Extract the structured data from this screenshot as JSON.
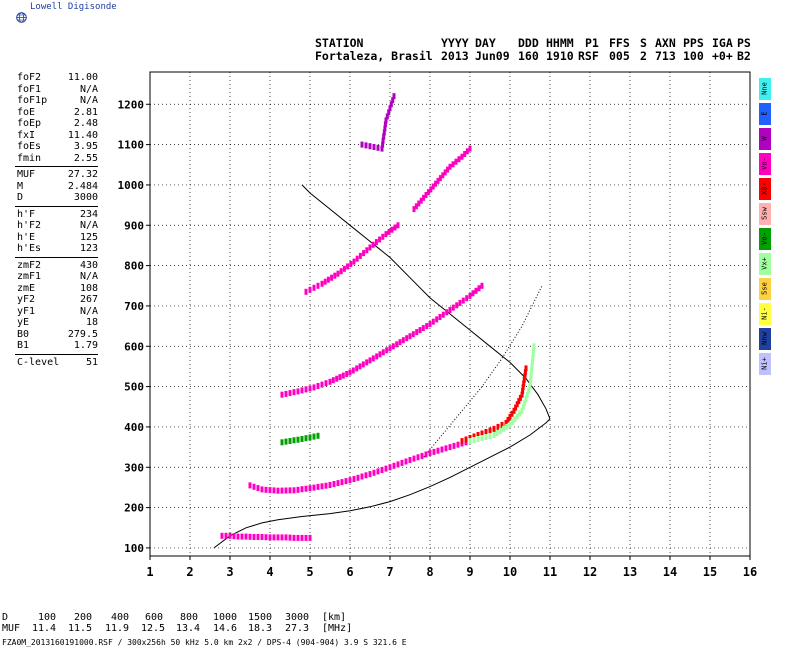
{
  "brand": {
    "name": "Lowell Digisonde"
  },
  "header": {
    "line1": [
      "STATION",
      "YYYY",
      "DAY",
      "DDD",
      "HHMM",
      "P1",
      "FFS",
      "S",
      "AXN",
      "PPS",
      "IGA",
      "PS"
    ],
    "line2": [
      "Fortaleza, Brasil",
      "2013",
      "Jun09",
      "160",
      "1910",
      "RSF",
      "005",
      "2",
      "713",
      "100",
      "+0+",
      "B2"
    ]
  },
  "params": {
    "group1": [
      {
        "label": "foF2",
        "value": "11.00"
      },
      {
        "label": "foF1",
        "value": "N/A"
      },
      {
        "label": "foF1p",
        "value": "N/A"
      },
      {
        "label": "foE",
        "value": "2.81"
      },
      {
        "label": "foEp",
        "value": "2.48"
      },
      {
        "label": "fxI",
        "value": "11.40"
      },
      {
        "label": "foEs",
        "value": "3.95"
      },
      {
        "label": "fmin",
        "value": "2.55"
      }
    ],
    "group2": [
      {
        "label": "MUF",
        "value": "27.32"
      },
      {
        "label": "M",
        "value": "2.484"
      },
      {
        "label": "D",
        "value": "3000"
      }
    ],
    "group3": [
      {
        "label": "h'F",
        "value": "234"
      },
      {
        "label": "h'F2",
        "value": "N/A"
      },
      {
        "label": "h'E",
        "value": "125"
      },
      {
        "label": "h'Es",
        "value": "123"
      }
    ],
    "group4": [
      {
        "label": "zmF2",
        "value": "430"
      },
      {
        "label": "zmF1",
        "value": "N/A"
      },
      {
        "label": "zmE",
        "value": "108"
      },
      {
        "label": "yF2",
        "value": "267"
      },
      {
        "label": "yF1",
        "value": "N/A"
      },
      {
        "label": "yE",
        "value": "18"
      },
      {
        "label": "B0",
        "value": "279.5"
      },
      {
        "label": "B1",
        "value": "1.79"
      }
    ],
    "group5": [
      {
        "label": "C-level",
        "value": "51"
      }
    ]
  },
  "legend": [
    {
      "label": "Nne",
      "color": "#40f0f0"
    },
    {
      "label": "E",
      "color": "#2060ff"
    },
    {
      "label": "W",
      "color": "#b000c0"
    },
    {
      "label": "Vo-",
      "color": "#ff00c0"
    },
    {
      "label": "X0-",
      "color": "#ff0000"
    },
    {
      "label": "Ssw",
      "color": "#ffb0b0"
    },
    {
      "label": "Vo-",
      "color": "#00a000"
    },
    {
      "label": "Vx+",
      "color": "#a0ffa0"
    },
    {
      "label": "Sse",
      "color": "#ffd040"
    },
    {
      "label": "Ni-",
      "color": "#ffff40"
    },
    {
      "label": "Nnw",
      "color": "#2040a0"
    },
    {
      "label": "Ni+",
      "color": "#c0c0ff"
    }
  ],
  "bottom_table": {
    "row1": {
      "label": "D",
      "values": [
        "100",
        "200",
        "400",
        "600",
        "800",
        "1000",
        "1500",
        "3000"
      ],
      "unit": "[km]"
    },
    "row2": {
      "label": "MUF",
      "values": [
        "11.4",
        "11.5",
        "11.9",
        "12.5",
        "13.4",
        "14.6",
        "18.3",
        "27.3"
      ],
      "unit": "[MHz]"
    }
  },
  "footer": "FZA0M_2013160191000.RSF / 300x256h 50 kHz 5.0 km 2x2 / DPS-4 (904-904)   3.9 S 321.6 E",
  "chart_data": {
    "type": "scatter",
    "title": "",
    "xlabel": "",
    "ylabel": "",
    "xlim": [
      1,
      16
    ],
    "ylim": [
      80,
      1280
    ],
    "grid": true,
    "x_ticks": [
      1,
      2,
      3,
      4,
      5,
      6,
      7,
      8,
      9,
      10,
      11,
      12,
      13,
      14,
      15,
      16
    ],
    "y_ticks": [
      100,
      200,
      300,
      400,
      500,
      600,
      700,
      800,
      900,
      1000,
      1100,
      1200
    ],
    "series": [
      {
        "color": "#ff00c0",
        "x": [
          2.8,
          3.0,
          3.2,
          3.4,
          3.6,
          3.8,
          4.0,
          4.2,
          4.4,
          4.6,
          4.8,
          5.0
        ],
        "y": [
          130,
          130,
          128,
          128,
          127,
          127,
          126,
          126,
          126,
          125,
          125,
          125
        ]
      },
      {
        "color": "#ff00c0",
        "x": [
          3.5,
          3.8,
          4.2,
          4.6,
          5.0,
          5.5,
          6.0,
          6.5,
          7.0,
          7.5,
          8.0,
          8.5,
          9.0,
          9.4
        ],
        "y": [
          255,
          245,
          242,
          243,
          248,
          256,
          268,
          283,
          300,
          318,
          335,
          350,
          365,
          378
        ]
      },
      {
        "color": "#ff0000",
        "x": [
          8.8,
          9.2,
          9.6,
          9.9,
          10.1,
          10.3,
          10.4
        ],
        "y": [
          365,
          380,
          395,
          410,
          440,
          480,
          545
        ]
      },
      {
        "color": "#a0ffa0",
        "x": [
          9.0,
          9.6,
          10.0,
          10.3,
          10.5,
          10.6
        ],
        "y": [
          365,
          380,
          405,
          440,
          500,
          600
        ]
      },
      {
        "color": "#ff00c0",
        "x": [
          4.3,
          4.7,
          5.1,
          5.5,
          6.0,
          6.5,
          7.0,
          7.5,
          8.0,
          8.5,
          9.0,
          9.3
        ],
        "y": [
          480,
          488,
          498,
          512,
          535,
          565,
          595,
          625,
          655,
          690,
          725,
          750
        ]
      },
      {
        "color": "#00a000",
        "x": [
          4.3,
          4.8,
          5.2
        ],
        "y": [
          362,
          370,
          378
        ]
      },
      {
        "color": "#ff00c0",
        "x": [
          4.9,
          5.3,
          5.7,
          6.1,
          6.5,
          6.9,
          7.2
        ],
        "y": [
          735,
          755,
          780,
          810,
          845,
          878,
          900
        ]
      },
      {
        "color": "#ff00c0",
        "x": [
          7.6,
          7.9,
          8.2,
          8.5,
          8.8,
          9.0
        ],
        "y": [
          940,
          975,
          1010,
          1045,
          1070,
          1090
        ]
      },
      {
        "color": "#b000c0",
        "x": [
          6.3,
          6.8,
          6.9,
          7.1
        ],
        "y": [
          1100,
          1090,
          1160,
          1220
        ]
      }
    ],
    "curves": [
      {
        "style": "solid",
        "x": [
          2.6,
          3.0,
          3.4,
          3.8,
          4.2,
          4.8,
          5.5,
          6.0,
          6.5,
          7.0,
          7.5,
          8.0,
          8.5,
          9.0,
          9.5,
          10.0,
          10.5,
          10.9,
          11.0
        ],
        "y": [
          100,
          130,
          150,
          162,
          170,
          178,
          185,
          192,
          202,
          215,
          232,
          252,
          275,
          300,
          325,
          350,
          380,
          410,
          420
        ]
      },
      {
        "style": "solid",
        "x": [
          11.0,
          10.9,
          10.7,
          10.4,
          10.0,
          9.5,
          9.0,
          8.5,
          8.0,
          7.5,
          7.0,
          6.5,
          6.0,
          5.5,
          5.0,
          4.8
        ],
        "y": [
          420,
          445,
          480,
          520,
          560,
          600,
          640,
          680,
          720,
          770,
          820,
          860,
          900,
          940,
          980,
          1000
        ]
      },
      {
        "style": "dotted",
        "x": [
          7.8,
          8.3,
          8.8,
          9.3,
          9.8,
          10.3,
          10.8
        ],
        "y": [
          320,
          380,
          440,
          500,
          570,
          650,
          750
        ]
      }
    ]
  }
}
